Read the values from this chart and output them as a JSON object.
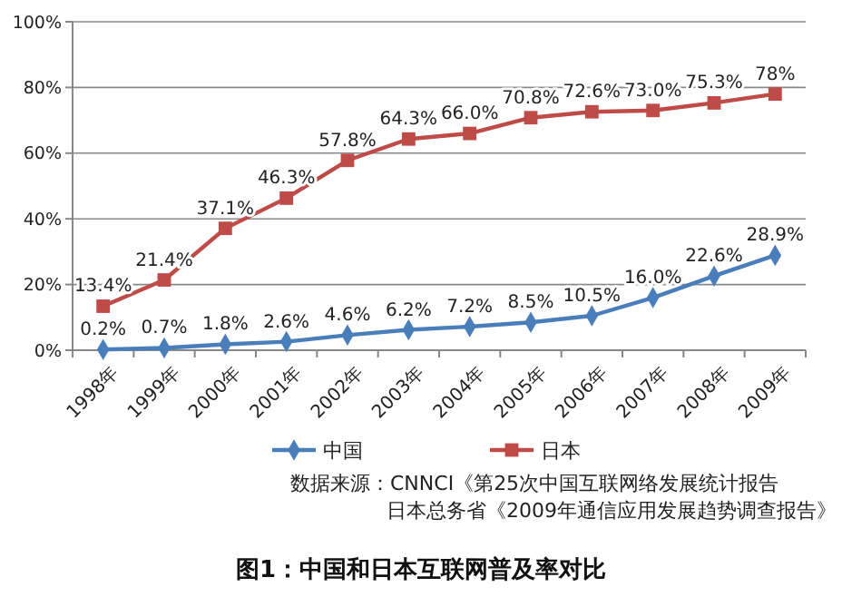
{
  "chart_data": {
    "type": "line",
    "title": "图1：中国和日本互联网普及率对比",
    "categories": [
      "1998年",
      "1999年",
      "2000年",
      "2001年",
      "2002年",
      "2003年",
      "2004年",
      "2005年",
      "2006年",
      "2007年",
      "2008年",
      "2009年"
    ],
    "series": [
      {
        "name": "中国",
        "color": "#4a7ebb",
        "marker": "diamond",
        "values": [
          0.2,
          0.7,
          1.8,
          2.6,
          4.6,
          6.2,
          7.2,
          8.5,
          10.5,
          16.0,
          22.6,
          28.9
        ],
        "value_labels": [
          "0.2%",
          "0.7%",
          "1.8%",
          "2.6%",
          "4.6%",
          "6.2%",
          "7.2%",
          "8.5%",
          "10.5%",
          "16.0%",
          "22.6%",
          "28.9%"
        ]
      },
      {
        "name": "日本",
        "color": "#be4b48",
        "marker": "square",
        "values": [
          13.4,
          21.4,
          37.1,
          46.3,
          57.8,
          64.3,
          66.0,
          70.8,
          72.6,
          73.0,
          75.3,
          78
        ],
        "value_labels": [
          "13.4%",
          "21.4%",
          "37.1%",
          "46.3%",
          "57.8%",
          "64.3%",
          "66.0%",
          "70.8%",
          "72.6%",
          "73.0%",
          "75.3%",
          "78%"
        ]
      }
    ],
    "ylim": [
      0,
      100
    ],
    "yticks": [
      {
        "value": 0,
        "label": "0%"
      },
      {
        "value": 20,
        "label": "20%"
      },
      {
        "value": 40,
        "label": "40%"
      },
      {
        "value": 60,
        "label": "60%"
      },
      {
        "value": 80,
        "label": "80%"
      },
      {
        "value": 100,
        "label": "100%"
      }
    ],
    "grid": "y",
    "legend": "bottom",
    "annotations": [
      "数据来源：CNNCI《第25次中国互联网络发展统计报告",
      "日本总务省《2009年通信应用发展趋势调查报告》"
    ]
  }
}
